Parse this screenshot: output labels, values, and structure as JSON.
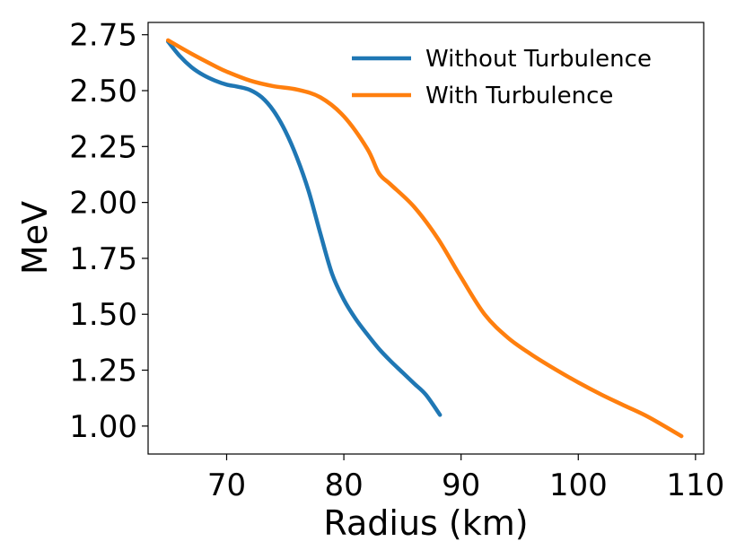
{
  "chart_data": {
    "type": "line",
    "title": "",
    "xlabel": "Radius (km)",
    "ylabel": "MeV",
    "xlim": [
      63.3,
      110.7
    ],
    "ylim": [
      0.875,
      2.805
    ],
    "xticks": [
      70,
      80,
      90,
      100,
      110
    ],
    "yticks": [
      1.0,
      1.25,
      1.5,
      1.75,
      2.0,
      2.25,
      2.5,
      2.75
    ],
    "xtick_labels": [
      "70",
      "80",
      "90",
      "100",
      "110"
    ],
    "ytick_labels": [
      "1.00",
      "1.25",
      "1.50",
      "1.75",
      "2.00",
      "2.25",
      "2.50",
      "2.75"
    ],
    "grid": false,
    "legend_position": "top-right",
    "series": [
      {
        "name": "Without Turbulence",
        "color": "#1f77b4",
        "points": [
          [
            65.0,
            2.72
          ],
          [
            66.0,
            2.655
          ],
          [
            67.0,
            2.605
          ],
          [
            68.0,
            2.57
          ],
          [
            69.0,
            2.545
          ],
          [
            70.0,
            2.527
          ],
          [
            71.0,
            2.517
          ],
          [
            72.0,
            2.503
          ],
          [
            73.0,
            2.47
          ],
          [
            74.0,
            2.41
          ],
          [
            75.0,
            2.32
          ],
          [
            76.0,
            2.2
          ],
          [
            77.0,
            2.05
          ],
          [
            78.0,
            1.86
          ],
          [
            79.0,
            1.68
          ],
          [
            80.0,
            1.565
          ],
          [
            81.0,
            1.48
          ],
          [
            82.0,
            1.41
          ],
          [
            83.0,
            1.345
          ],
          [
            84.0,
            1.29
          ],
          [
            85.0,
            1.24
          ],
          [
            86.0,
            1.19
          ],
          [
            87.0,
            1.14
          ],
          [
            88.2,
            1.05
          ]
        ]
      },
      {
        "name": "With Turbulence",
        "color": "#ff7f0e",
        "points": [
          [
            65.0,
            2.725
          ],
          [
            67.0,
            2.665
          ],
          [
            69.0,
            2.61
          ],
          [
            70.0,
            2.585
          ],
          [
            72.0,
            2.545
          ],
          [
            74.0,
            2.52
          ],
          [
            76.0,
            2.505
          ],
          [
            78.0,
            2.47
          ],
          [
            80.0,
            2.385
          ],
          [
            82.0,
            2.24
          ],
          [
            83.0,
            2.13
          ],
          [
            84.0,
            2.08
          ],
          [
            86.0,
            1.98
          ],
          [
            88.0,
            1.84
          ],
          [
            90.0,
            1.665
          ],
          [
            92.0,
            1.5
          ],
          [
            94.0,
            1.395
          ],
          [
            96.0,
            1.32
          ],
          [
            98.0,
            1.255
          ],
          [
            100.0,
            1.195
          ],
          [
            102.0,
            1.14
          ],
          [
            104.0,
            1.09
          ],
          [
            106.0,
            1.04
          ],
          [
            108.8,
            0.955
          ]
        ]
      }
    ]
  }
}
